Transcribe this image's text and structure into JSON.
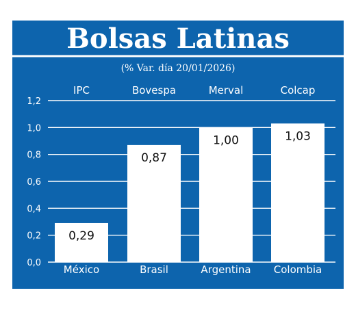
{
  "colors": {
    "background": "#0d64ad",
    "foreground": "#ffffff",
    "value_text": "#111111"
  },
  "chart_data": {
    "type": "bar",
    "title": "Bolsas Latinas",
    "subtitle": "(% Var. día 20/01/2026)",
    "categories": [
      "México",
      "Brasil",
      "Argentina",
      "Colombia"
    ],
    "index_names": [
      "IPC",
      "Bovespa",
      "Merval",
      "Colcap"
    ],
    "values": [
      0.29,
      0.87,
      1.0,
      1.03
    ],
    "value_labels": [
      "0,29",
      "0,87",
      "1,00",
      "1,03"
    ],
    "yticks": [
      "0,0",
      "0,2",
      "0,4",
      "0,6",
      "0,8",
      "1,0",
      "1,2"
    ],
    "ylim": [
      0,
      1.2
    ],
    "grid": true,
    "xlabel": "",
    "ylabel": ""
  }
}
